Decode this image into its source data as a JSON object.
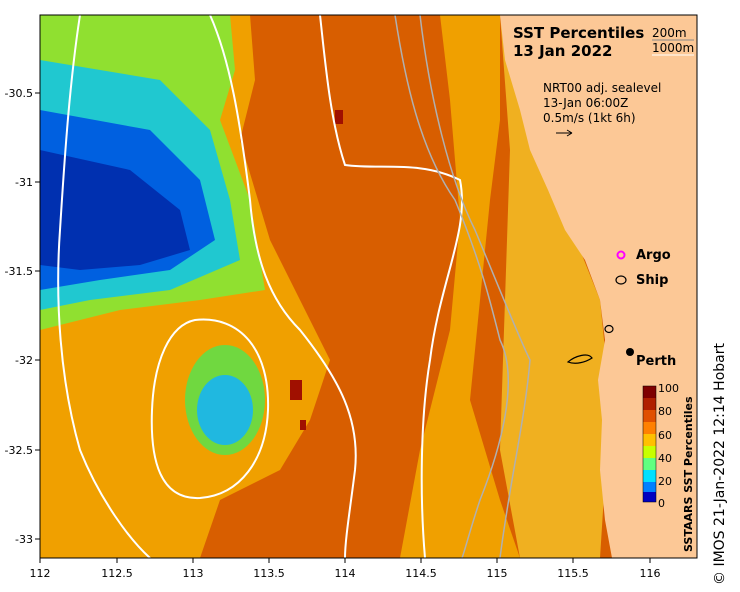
{
  "title": {
    "line1": "SST Percentiles",
    "line2": "13 Jan 2022"
  },
  "contour_legend": {
    "shallow": "200m",
    "deep": "1000m"
  },
  "current_info": {
    "line1": "NRT00 adj. sealevel",
    "line2": "13-Jan 06:00Z",
    "line3": "0.5m/s (1kt 6h)"
  },
  "markers": {
    "argo_label": "Argo",
    "ship_label": "Ship",
    "city_label": "Perth"
  },
  "colorbar": {
    "title": "SSTAARS SST Percentiles",
    "ticks": [
      "100",
      "80",
      "60",
      "40",
      "20",
      "0"
    ],
    "colors": [
      "#00007f",
      "#0000ff",
      "#0080ff",
      "#00ffff",
      "#80ff80",
      "#c8ff00",
      "#ffff00",
      "#ff8000",
      "#e05000",
      "#b02000",
      "#7f0000"
    ]
  },
  "axes": {
    "x_ticks": [
      "112",
      "112.5",
      "113",
      "113.5",
      "114",
      "114.5",
      "115",
      "115.5",
      "116"
    ],
    "y_ticks": [
      "-30.5",
      "-31",
      "-31.5",
      "-32",
      "-32.5",
      "-33"
    ]
  },
  "credit": "© IMOS 21-Jan-2022 12:14 Hobart",
  "colors": {
    "land": "#fcc896",
    "ocean_orange": "#e07010",
    "warm": "#f0a000",
    "cold_blue": "#0030c0"
  }
}
